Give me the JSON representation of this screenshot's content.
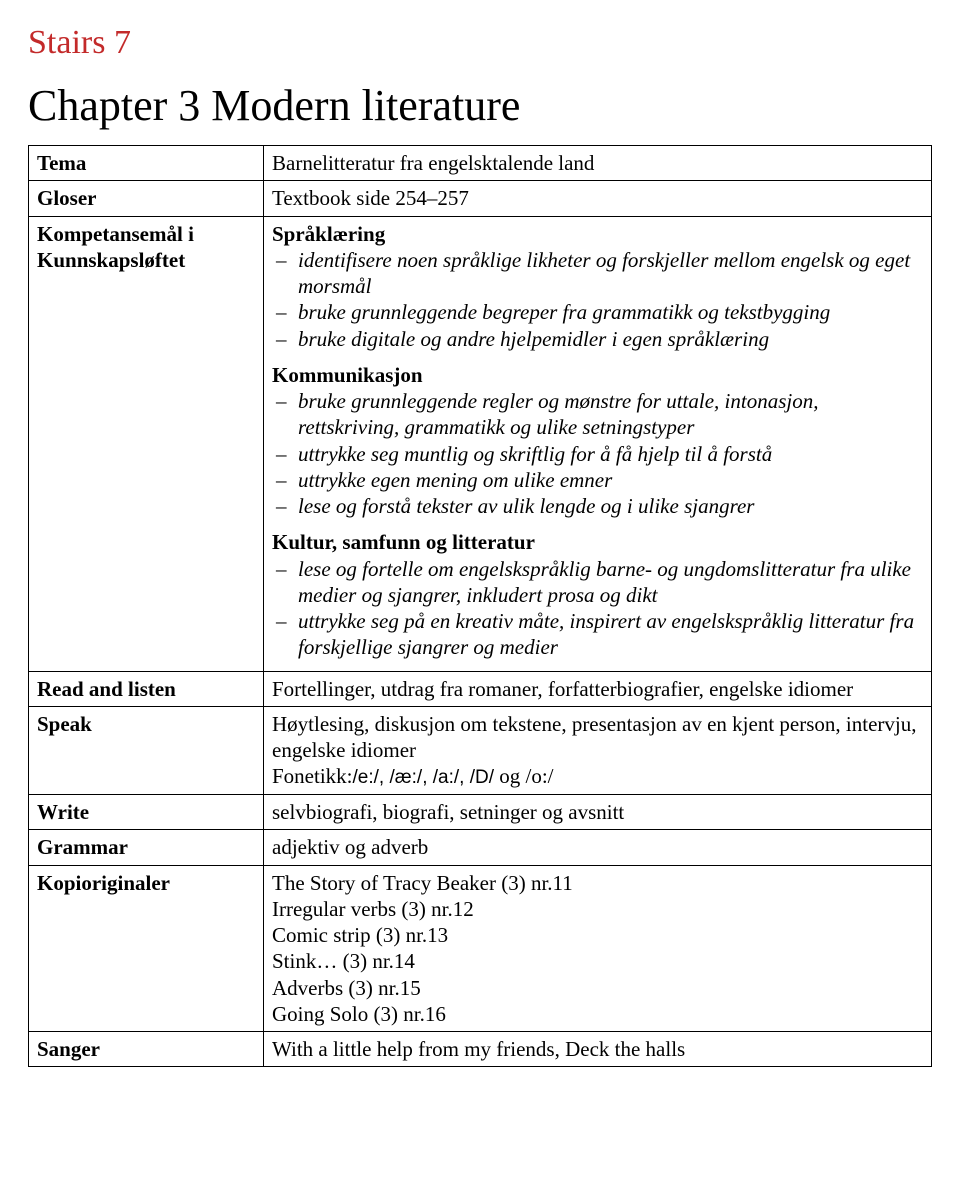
{
  "header": {
    "title": "Stairs 7",
    "chapter": "Chapter 3 Modern literature"
  },
  "rows": {
    "tema": {
      "label": "Tema",
      "value": "Barnelitteratur fra engelsktalende land"
    },
    "gloser": {
      "label": "Gloser",
      "value": "Textbook side 254–257"
    },
    "kompetanse": {
      "label1": "Kompetansemål i",
      "label2": "Kunnskapsløftet",
      "spraklaering_head": "Språklæring",
      "spraklaering_items": [
        "identifisere noen språklige likheter og forskjeller mellom engelsk og eget morsmål",
        "bruke grunnleggende begreper fra grammatikk og tekstbygging",
        "bruke digitale og andre hjelpemidler i egen språklæring"
      ],
      "komm_head": "Kommunikasjon",
      "komm_items": [
        "bruke grunnleggende regler og mønstre for uttale, intonasjon, rettskriving, grammatikk og ulike setningstyper",
        "uttrykke seg muntlig og skriftlig for å få hjelp til å forstå",
        "uttrykke egen mening om ulike emner",
        "lese og forstå tekster av ulik lengde og i ulike sjangrer"
      ],
      "kultur_head": "Kultur, samfunn og litteratur",
      "kultur_items": [
        "lese og fortelle om engelskspråklig barne- og ungdomslitteratur fra ulike medier og sjangrer, inkludert prosa og dikt",
        "uttrykke seg på en kreativ måte, inspirert av engelskspråklig litteratur fra forskjellige sjangrer og medier"
      ]
    },
    "read": {
      "label": "Read and listen",
      "value": "Fortellinger, utdrag fra romaner, forfatterbiografier, engelske idiomer"
    },
    "speak": {
      "label": "Speak",
      "line1": "Høytlesing, diskusjon om tekstene, presentasjon av en kjent person, intervju, engelske idiomer",
      "line2_pre": "Fonetikk:",
      "line2_phon": "/e:/, /æ:/, /a:/, /D/",
      "line2_post": " og /o:/"
    },
    "write": {
      "label": "Write",
      "value": "selvbiografi, biografi, setninger og avsnitt"
    },
    "grammar": {
      "label": "Grammar",
      "value": "adjektiv og adverb"
    },
    "kopi": {
      "label": "Kopioriginaler",
      "lines": [
        "The Story of Tracy Beaker (3) nr.11",
        "Irregular verbs (3) nr.12",
        "Comic strip (3) nr.13",
        "Stink… (3) nr.14",
        "Adverbs (3) nr.15",
        "Going Solo (3) nr.16"
      ]
    },
    "sanger": {
      "label": "Sanger",
      "value": "With a little help from my friends, Deck the halls"
    }
  }
}
